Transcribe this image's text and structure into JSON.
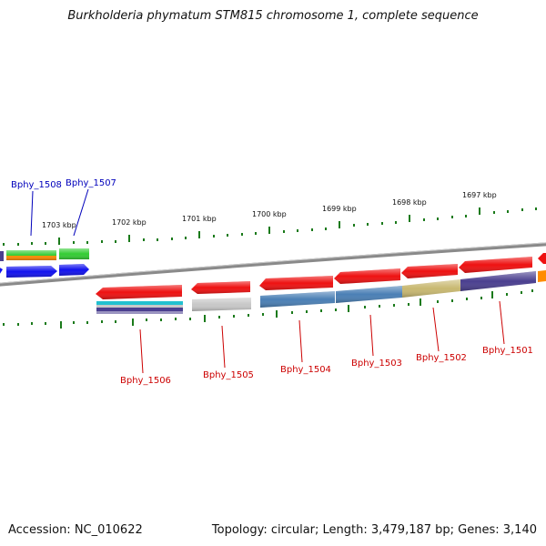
{
  "title": "Burkholderia phymatum STM815 chromosome 1, complete sequence",
  "accession": "Accession: NC_010622",
  "summary": "Topology: circular; Length: 3,479,187 bp; Genes: 3,140",
  "colors": {
    "backbone": "#8a8a8a",
    "tick": "#1a7a1a",
    "label_forward": "#0000bb",
    "label_reverse": "#cc0000",
    "gene_red": "#ee1111",
    "gene_blue": "#1111ee",
    "gene_green": "#33cc33",
    "gene_orange": "#ff8c00",
    "steelblue": "#4a7fb5",
    "tan": "#c8b870",
    "indigo": "#4a3f8f",
    "cyan": "#22c0d0",
    "lightgray": "#c8c8c8"
  },
  "ticks": [
    {
      "label": "1703 kbp"
    },
    {
      "label": "1702 kbp"
    },
    {
      "label": "1701 kbp"
    },
    {
      "label": "1700 kbp"
    },
    {
      "label": "1699 kbp"
    },
    {
      "label": "1698 kbp"
    },
    {
      "label": "1697 kbp"
    }
  ],
  "forward_labels": [
    {
      "name": "Bphy_1508"
    },
    {
      "name": "Bphy_1507"
    }
  ],
  "reverse_labels": [
    {
      "name": "Bphy_1506"
    },
    {
      "name": "Bphy_1505"
    },
    {
      "name": "Bphy_1504"
    },
    {
      "name": "Bphy_1503"
    },
    {
      "name": "Bphy_1502"
    },
    {
      "name": "Bphy_1501"
    }
  ]
}
